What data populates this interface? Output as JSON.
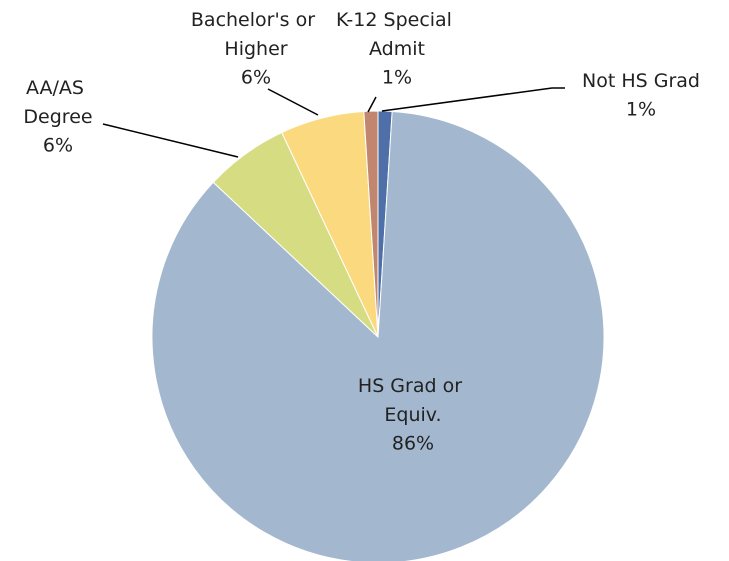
{
  "chart_data": {
    "type": "pie",
    "categories": [
      "Not HS Grad",
      "HS Grad or Equiv.",
      "AA/AS Degree",
      "Bachelor's or Higher",
      "K-12 Special Admit"
    ],
    "values": [
      1,
      86,
      6,
      6,
      1
    ],
    "value_labels": [
      "1%",
      "86%",
      "6%",
      "6%",
      "1%"
    ],
    "colors": [
      "#4f6fa8",
      "#a3b8cf",
      "#d6dc82",
      "#fad97f",
      "#c0876e"
    ]
  }
}
